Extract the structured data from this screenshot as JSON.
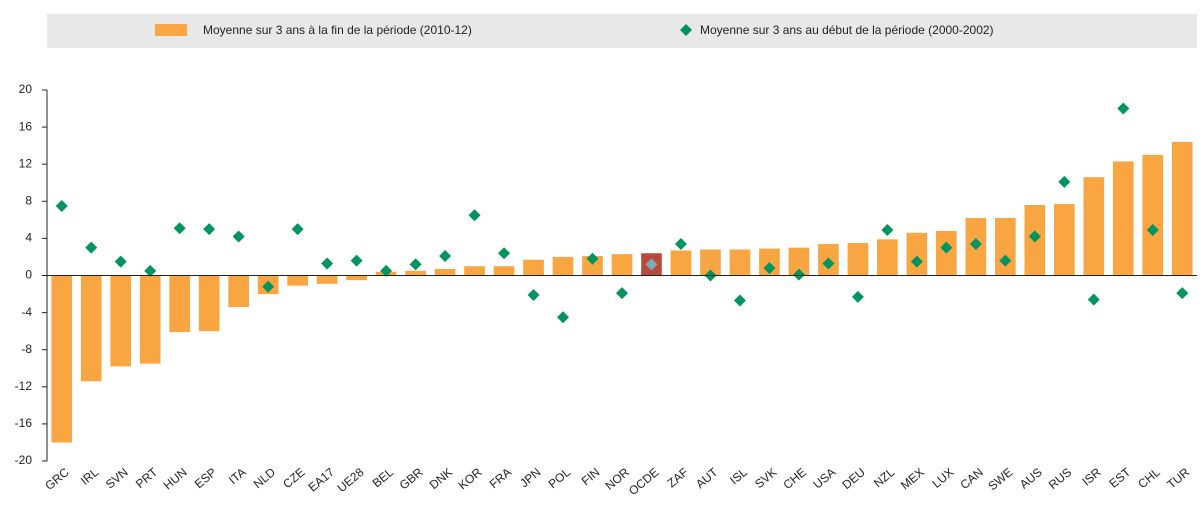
{
  "chart_data": {
    "type": "bar",
    "categories": [
      "GRC",
      "IRL",
      "SVN",
      "PRT",
      "HUN",
      "ESP",
      "ITA",
      "NLD",
      "CZE",
      "EA17",
      "UE28",
      "BEL",
      "GBR",
      "DNK",
      "KOR",
      "FRA",
      "JPN",
      "POL",
      "FIN",
      "NOR",
      "OCDE",
      "ZAF",
      "AUT",
      "ISL",
      "SVK",
      "CHE",
      "USA",
      "DEU",
      "NZL",
      "MEX",
      "LUX",
      "CAN",
      "SWE",
      "AUS",
      "RUS",
      "ISR",
      "EST",
      "CHL",
      "TUR"
    ],
    "series": [
      {
        "name": "Moyenne sur 3 ans à la fin de la période (2010-12)",
        "type": "bar",
        "color": "#f9a541",
        "values": [
          -18,
          -11.4,
          -9.8,
          -9.5,
          -6.1,
          -6.0,
          -3.4,
          -2.0,
          -1.1,
          -0.9,
          -0.5,
          0.4,
          0.5,
          0.7,
          1.0,
          1.0,
          1.7,
          2.0,
          2.1,
          2.3,
          2.4,
          2.7,
          2.8,
          2.8,
          2.9,
          3.0,
          3.4,
          3.5,
          3.9,
          4.6,
          4.8,
          6.2,
          6.2,
          7.6,
          7.7,
          10.6,
          12.3,
          13.0,
          14.4
        ]
      },
      {
        "name": "Moyenne sur 3 ans au début de la période (2000-2002)",
        "type": "scatter",
        "color": "#00955f",
        "values": [
          7.5,
          3.0,
          1.5,
          0.5,
          5.1,
          5.0,
          4.2,
          -1.2,
          5.0,
          1.3,
          1.6,
          0.5,
          1.2,
          2.1,
          6.5,
          2.4,
          -2.1,
          -4.5,
          1.8,
          -1.9,
          1.2,
          3.4,
          0.0,
          -2.7,
          0.8,
          0.1,
          1.3,
          -2.3,
          4.9,
          1.5,
          3.0,
          3.4,
          1.6,
          4.2,
          10.1,
          -2.6,
          18.0,
          4.9,
          -1.9
        ]
      }
    ],
    "highlight": {
      "category": "OCDE",
      "bar_color": "#b84a3c",
      "marker_color": "#7fa8b6"
    },
    "ylim": [
      -20,
      20
    ],
    "yticks": [
      -20,
      -16,
      -12,
      -8,
      -4,
      0,
      4,
      8,
      12,
      16,
      20
    ],
    "grid": false,
    "legend": "top"
  }
}
